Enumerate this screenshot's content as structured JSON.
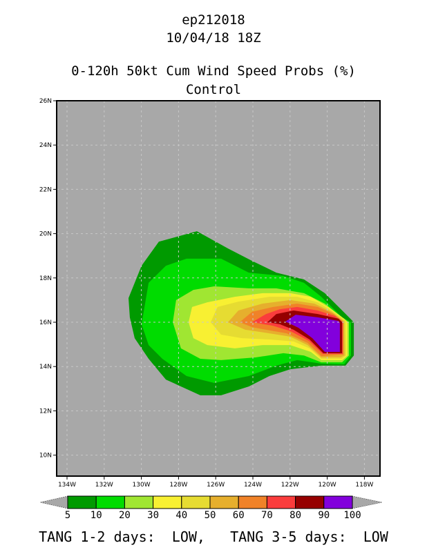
{
  "chart_data": {
    "type": "filled-contour-map",
    "title_lines": [
      "ep212018",
      "10/04/18 18Z",
      "0-120h 50kt Cum Wind Speed Probs (%)",
      "Control"
    ],
    "xlim": [
      -134.4,
      -117.1
    ],
    "ylim": [
      9,
      26
    ],
    "x_ticks": [
      {
        "v": -134,
        "label": "134W"
      },
      {
        "v": -132,
        "label": "132W"
      },
      {
        "v": -130,
        "label": "130W"
      },
      {
        "v": -128,
        "label": "128W"
      },
      {
        "v": -126,
        "label": "126W"
      },
      {
        "v": -124,
        "label": "124W"
      },
      {
        "v": -122,
        "label": "122W"
      },
      {
        "v": -120,
        "label": "120W"
      },
      {
        "v": -118,
        "label": "118W"
      }
    ],
    "y_ticks": [
      {
        "v": 10,
        "label": "10N"
      },
      {
        "v": 12,
        "label": "12N"
      },
      {
        "v": 14,
        "label": "14N"
      },
      {
        "v": 16,
        "label": "16N"
      },
      {
        "v": 18,
        "label": "18N"
      },
      {
        "v": 20,
        "label": "20N"
      },
      {
        "v": 22,
        "label": "22N"
      },
      {
        "v": 24,
        "label": "24N"
      },
      {
        "v": 26,
        "label": "26N"
      }
    ],
    "grid": true,
    "background_color": "#a8a8a8",
    "levels": [
      5,
      10,
      20,
      30,
      40,
      50,
      60,
      70,
      80,
      90,
      100
    ],
    "level_labels": [
      "5",
      "10",
      "20",
      "30",
      "40",
      "50",
      "60",
      "70",
      "80",
      "90",
      "100"
    ],
    "colors": [
      "#009a00",
      "#00dc00",
      "#a0e632",
      "#f8f032",
      "#e6dc32",
      "#e6af2d",
      "#f08228",
      "#fa3c3c",
      "#960000",
      "#8200dc"
    ],
    "filled_contours": [
      {
        "min": 5,
        "polygon": [
          [
            -130.69,
            17.09
          ],
          [
            -129.99,
            18.55
          ],
          [
            -129.06,
            19.64
          ],
          [
            -127.01,
            20.11
          ],
          [
            -125.34,
            19.33
          ],
          [
            -124.04,
            18.77
          ],
          [
            -122.74,
            18.24
          ],
          [
            -121.25,
            17.93
          ],
          [
            -120.13,
            17.31
          ],
          [
            -119.02,
            16.38
          ],
          [
            -118.57,
            16.0
          ],
          [
            -118.57,
            14.5
          ],
          [
            -119.02,
            14.04
          ],
          [
            -120.32,
            14.04
          ],
          [
            -121.99,
            13.88
          ],
          [
            -123.11,
            13.57
          ],
          [
            -124.22,
            13.1
          ],
          [
            -125.71,
            12.7
          ],
          [
            -126.83,
            12.7
          ],
          [
            -128.68,
            13.41
          ],
          [
            -129.61,
            14.35
          ],
          [
            -130.36,
            15.28
          ],
          [
            -130.62,
            16.22
          ]
        ]
      },
      {
        "min": 10,
        "polygon": [
          [
            -129.99,
            15.91
          ],
          [
            -129.61,
            17.78
          ],
          [
            -128.68,
            18.55
          ],
          [
            -127.57,
            18.87
          ],
          [
            -125.71,
            18.87
          ],
          [
            -124.22,
            18.24
          ],
          [
            -122.36,
            18.09
          ],
          [
            -121.25,
            17.78
          ],
          [
            -120.32,
            17.15
          ],
          [
            -119.2,
            16.22
          ],
          [
            -118.72,
            16.0
          ],
          [
            -118.72,
            14.5
          ],
          [
            -119.09,
            14.1
          ],
          [
            -120.32,
            14.13
          ],
          [
            -121.62,
            14.29
          ],
          [
            -122.74,
            14.04
          ],
          [
            -124.22,
            13.57
          ],
          [
            -126.08,
            13.26
          ],
          [
            -127.57,
            13.57
          ],
          [
            -128.87,
            14.35
          ],
          [
            -129.61,
            14.97
          ]
        ]
      },
      {
        "min": 20,
        "polygon": [
          [
            -128.31,
            16.0
          ],
          [
            -128.13,
            17.0
          ],
          [
            -127.2,
            17.46
          ],
          [
            -126.08,
            17.62
          ],
          [
            -124.22,
            17.53
          ],
          [
            -122.74,
            17.53
          ],
          [
            -121.25,
            17.31
          ],
          [
            -120.13,
            16.84
          ],
          [
            -119.2,
            16.22
          ],
          [
            -118.83,
            16.0
          ],
          [
            -118.83,
            14.5
          ],
          [
            -119.2,
            14.19
          ],
          [
            -120.32,
            14.19
          ],
          [
            -121.25,
            14.5
          ],
          [
            -122.36,
            14.6
          ],
          [
            -123.85,
            14.41
          ],
          [
            -125.71,
            14.29
          ],
          [
            -126.83,
            14.35
          ],
          [
            -127.87,
            14.82
          ]
        ]
      },
      {
        "min": 30,
        "polygon": [
          [
            -127.46,
            16.0
          ],
          [
            -127.27,
            16.69
          ],
          [
            -126.45,
            16.9
          ],
          [
            -124.97,
            17.15
          ],
          [
            -123.48,
            17.31
          ],
          [
            -121.99,
            17.31
          ],
          [
            -120.88,
            17.15
          ],
          [
            -119.95,
            16.69
          ],
          [
            -119.09,
            16.16
          ],
          [
            -118.91,
            16.0
          ],
          [
            -118.91,
            14.5
          ],
          [
            -119.2,
            14.29
          ],
          [
            -120.32,
            14.29
          ],
          [
            -120.88,
            14.66
          ],
          [
            -121.99,
            14.97
          ],
          [
            -123.48,
            14.97
          ],
          [
            -124.97,
            14.82
          ],
          [
            -126.45,
            14.97
          ],
          [
            -127.2,
            15.28
          ]
        ]
      },
      {
        "min": 40,
        "polygon": [
          [
            -126.27,
            16.0
          ],
          [
            -125.9,
            16.69
          ],
          [
            -124.78,
            16.93
          ],
          [
            -123.11,
            17.15
          ],
          [
            -121.62,
            17.15
          ],
          [
            -120.51,
            16.9
          ],
          [
            -119.76,
            16.53
          ],
          [
            -119.02,
            16.07
          ],
          [
            -118.98,
            14.5
          ],
          [
            -119.2,
            14.35
          ],
          [
            -120.32,
            14.35
          ],
          [
            -120.95,
            14.82
          ],
          [
            -121.81,
            15.13
          ],
          [
            -123.11,
            15.22
          ],
          [
            -124.59,
            15.28
          ],
          [
            -125.71,
            15.44
          ]
        ]
      },
      {
        "min": 50,
        "polygon": [
          [
            -125.34,
            16.0
          ],
          [
            -124.78,
            16.53
          ],
          [
            -123.48,
            16.84
          ],
          [
            -121.99,
            17.0
          ],
          [
            -120.69,
            16.84
          ],
          [
            -119.76,
            16.47
          ],
          [
            -119.09,
            16.03
          ],
          [
            -119.06,
            14.5
          ],
          [
            -119.28,
            14.41
          ],
          [
            -120.32,
            14.41
          ],
          [
            -121.06,
            14.97
          ],
          [
            -121.99,
            15.35
          ],
          [
            -123.11,
            15.5
          ],
          [
            -124.41,
            15.66
          ]
        ]
      },
      {
        "min": 60,
        "polygon": [
          [
            -124.71,
            16.0
          ],
          [
            -124.04,
            16.47
          ],
          [
            -122.92,
            16.69
          ],
          [
            -121.62,
            16.84
          ],
          [
            -120.51,
            16.69
          ],
          [
            -119.65,
            16.37
          ],
          [
            -119.13,
            16.03
          ],
          [
            -119.13,
            14.54
          ],
          [
            -120.32,
            14.47
          ],
          [
            -121.06,
            15.07
          ],
          [
            -122.18,
            15.5
          ],
          [
            -123.29,
            15.66
          ],
          [
            -124.04,
            15.78
          ]
        ]
      },
      {
        "min": 70,
        "polygon": [
          [
            -124.04,
            16.0
          ],
          [
            -123.29,
            16.37
          ],
          [
            -122.55,
            16.59
          ],
          [
            -121.62,
            16.69
          ],
          [
            -120.51,
            16.53
          ],
          [
            -119.58,
            16.28
          ],
          [
            -119.17,
            16.0
          ],
          [
            -119.17,
            14.57
          ],
          [
            -120.25,
            14.57
          ],
          [
            -120.99,
            15.16
          ],
          [
            -121.99,
            15.6
          ],
          [
            -122.92,
            15.84
          ]
        ]
      },
      {
        "min": 80,
        "polygon": [
          [
            -123.22,
            16.0
          ],
          [
            -122.74,
            16.37
          ],
          [
            -121.81,
            16.53
          ],
          [
            -120.51,
            16.37
          ],
          [
            -119.39,
            16.16
          ],
          [
            -119.2,
            16.0
          ],
          [
            -119.2,
            14.6
          ],
          [
            -120.21,
            14.6
          ],
          [
            -120.95,
            15.22
          ],
          [
            -121.81,
            15.66
          ],
          [
            -122.55,
            15.91
          ]
        ]
      },
      {
        "min": 90,
        "polygon": [
          [
            -122.25,
            16.03
          ],
          [
            -121.7,
            16.34
          ],
          [
            -120.51,
            16.22
          ],
          [
            -119.39,
            16.06
          ],
          [
            -119.32,
            15.97
          ],
          [
            -119.32,
            14.66
          ],
          [
            -120.13,
            14.66
          ],
          [
            -120.8,
            15.28
          ],
          [
            -121.55,
            15.75
          ]
        ]
      }
    ]
  },
  "footer": {
    "text": "TANG 1-2 days:  LOW,   TANG 3-5 days:  LOW"
  }
}
